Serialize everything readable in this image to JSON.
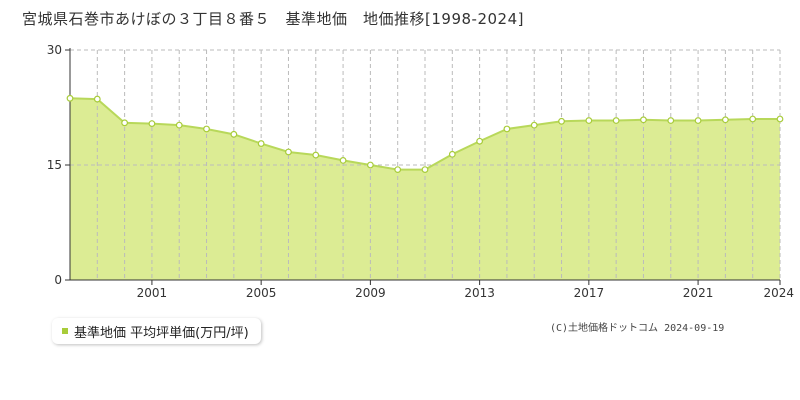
{
  "title": "宮城県石巻市あけぼの３丁目８番５　基準地価　地価推移[1998-2024]",
  "legend": {
    "label": "基準地価 平均坪単価(万円/坪)"
  },
  "credit": "(C)土地価格ドットコム 2024-09-19",
  "colors": {
    "area_fill": "#dcec94",
    "line": "#b8d85a",
    "marker_fill": "#ffffff",
    "marker_stroke": "#a8cc3a",
    "grid": "#bbbbbb",
    "legend_marker": "#a8cc3a"
  },
  "chart_data": {
    "type": "area",
    "x": [
      1998,
      1999,
      2000,
      2001,
      2002,
      2003,
      2004,
      2005,
      2006,
      2007,
      2008,
      2009,
      2010,
      2011,
      2012,
      2013,
      2014,
      2015,
      2016,
      2017,
      2018,
      2019,
      2020,
      2021,
      2022,
      2023,
      2024
    ],
    "series": [
      {
        "values": [
          23.7,
          23.6,
          20.5,
          20.4,
          20.2,
          19.7,
          19.0,
          17.8,
          16.7,
          16.3,
          15.6,
          15.0,
          14.4,
          14.4,
          16.4,
          18.1,
          19.7,
          20.2,
          20.7,
          20.8,
          20.8,
          20.9,
          20.8,
          20.8,
          20.9,
          21.0,
          21.0
        ]
      }
    ],
    "xticks": [
      "2001",
      "2005",
      "2009",
      "2013",
      "2017",
      "2021",
      "2024"
    ],
    "yticks": [
      "0",
      "15",
      "30"
    ],
    "ylim": [
      0,
      30
    ],
    "xlim": [
      1998,
      2024
    ],
    "xlabel": "",
    "ylabel": "",
    "grid": true
  }
}
